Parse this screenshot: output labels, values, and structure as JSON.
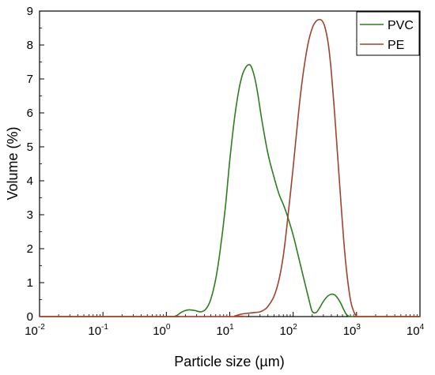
{
  "chart_data": {
    "type": "line",
    "title": "",
    "xlabel": "Particle size (µm)",
    "ylabel": "Volume (%)",
    "xscale": "log",
    "xlim": [
      0.01,
      10000
    ],
    "ylim": [
      0,
      9
    ],
    "x_ticks": [
      {
        "base": "10",
        "exp": "-2",
        "value": 0.01
      },
      {
        "base": "10",
        "exp": "-1",
        "value": 0.1
      },
      {
        "base": "10",
        "exp": "0",
        "value": 1
      },
      {
        "base": "10",
        "exp": "1",
        "value": 10
      },
      {
        "base": "10",
        "exp": "2",
        "value": 100
      },
      {
        "base": "10",
        "exp": "3",
        "value": 1000
      },
      {
        "base": "10",
        "exp": "4",
        "value": 10000
      }
    ],
    "y_ticks": [
      "0",
      "1",
      "2",
      "3",
      "4",
      "5",
      "6",
      "7",
      "8",
      "9"
    ],
    "grid": false,
    "legend_position": "top-right",
    "series": [
      {
        "name": "PVC",
        "color": "#2e7d1e",
        "x": [
          0.01,
          1.0,
          1.4,
          1.7,
          2.0,
          2.3,
          2.8,
          3.5,
          4.2,
          5.0,
          6.0,
          7.0,
          8.5,
          10,
          12,
          14,
          16,
          18,
          20,
          22,
          25,
          28,
          32,
          40,
          50,
          60,
          70,
          80,
          100,
          120,
          150,
          180,
          200,
          230,
          260,
          300,
          350,
          400,
          450,
          500,
          560,
          630,
          700,
          800,
          1000,
          10000
        ],
        "y": [
          0,
          0,
          0.02,
          0.12,
          0.18,
          0.2,
          0.18,
          0.14,
          0.22,
          0.5,
          1.1,
          1.9,
          3.2,
          4.6,
          5.9,
          6.7,
          7.15,
          7.35,
          7.42,
          7.35,
          7.0,
          6.5,
          5.8,
          4.8,
          4.1,
          3.6,
          3.3,
          3.0,
          2.4,
          1.8,
          1.05,
          0.45,
          0.15,
          0.12,
          0.25,
          0.45,
          0.6,
          0.66,
          0.64,
          0.55,
          0.4,
          0.2,
          0.05,
          0.0,
          0,
          0
        ]
      },
      {
        "name": "PE",
        "color": "#a0432c",
        "x": [
          0.01,
          10,
          12,
          15,
          20,
          25,
          30,
          35,
          40,
          50,
          60,
          70,
          80,
          100,
          120,
          140,
          170,
          200,
          230,
          260,
          290,
          320,
          360,
          400,
          450,
          500,
          560,
          630,
          700,
          800,
          900,
          1000,
          1100,
          10000
        ],
        "y": [
          0,
          0,
          0.02,
          0.07,
          0.1,
          0.12,
          0.14,
          0.2,
          0.3,
          0.6,
          1.1,
          1.8,
          2.7,
          4.4,
          5.9,
          7.0,
          8.0,
          8.5,
          8.7,
          8.75,
          8.7,
          8.5,
          8.0,
          7.2,
          6.0,
          4.8,
          3.5,
          2.2,
          1.3,
          0.5,
          0.15,
          0.02,
          0,
          0
        ]
      }
    ]
  }
}
